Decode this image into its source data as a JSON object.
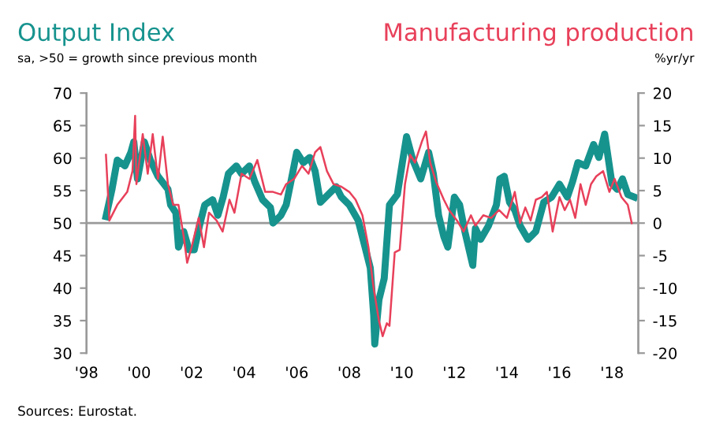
{
  "chart_data": {
    "type": "line",
    "ylabel": "Output Index",
    "y2label": "Manufacturing production",
    "subtitle": "sa, >50 = growth since previous month",
    "annotations": [
      "%yr/yr",
      "Sources: Eurostat."
    ],
    "xlim": [
      1998,
      2019
    ],
    "xticks": [
      {
        "value": 1998,
        "label": "'98"
      },
      {
        "value": 2000,
        "label": "'00"
      },
      {
        "value": 2002,
        "label": "'02"
      },
      {
        "value": 2004,
        "label": "'04"
      },
      {
        "value": 2006,
        "label": "'06"
      },
      {
        "value": 2008,
        "label": "'08"
      },
      {
        "value": 2010,
        "label": "'10"
      },
      {
        "value": 2012,
        "label": "'12"
      },
      {
        "value": 2014,
        "label": "'14"
      },
      {
        "value": 2016,
        "label": "'16"
      },
      {
        "value": 2018,
        "label": "'18"
      }
    ],
    "ylim": [
      30,
      70
    ],
    "yticks": [
      30,
      35,
      40,
      45,
      50,
      55,
      60,
      65,
      70
    ],
    "y2lim": [
      -20,
      20
    ],
    "y2ticks": [
      -20,
      -15,
      -10,
      -5,
      0,
      5,
      10,
      15,
      20
    ],
    "ref_lines": [
      {
        "axis": "y",
        "value": 50,
        "color": "#999999"
      }
    ],
    "grid": false,
    "legend": false,
    "series": [
      {
        "color": "#e8405a",
        "axis": "y2",
        "x": [
          1998.74,
          1998.87,
          1999.17,
          1999.55,
          1999.75,
          1999.85,
          1999.9,
          2000.14,
          2000.33,
          2000.52,
          2000.72,
          2000.9,
          2001.1,
          2001.3,
          2001.5,
          2001.7,
          2001.83,
          2002.0,
          2002.27,
          2002.47,
          2002.66,
          2002.95,
          2003.18,
          2003.44,
          2003.63,
          2003.9,
          2004.2,
          2004.5,
          2004.8,
          2005.1,
          2005.4,
          2005.6,
          2005.9,
          2006.2,
          2006.45,
          2006.7,
          2006.9,
          2007.15,
          2007.4,
          2007.7,
          2008.0,
          2008.24,
          2008.5,
          2008.73,
          2008.93,
          2009.13,
          2009.27,
          2009.43,
          2009.53,
          2009.73,
          2009.92,
          2010.12,
          2010.32,
          2010.5,
          2010.76,
          2010.92,
          2011.08,
          2011.3,
          2011.6,
          2011.8,
          2012.1,
          2012.35,
          2012.63,
          2012.8,
          2013.1,
          2013.4,
          2013.7,
          2014.0,
          2014.3,
          2014.5,
          2014.7,
          2014.9,
          2015.1,
          2015.33,
          2015.52,
          2015.74,
          2016.0,
          2016.2,
          2016.4,
          2016.6,
          2016.8,
          2017.0,
          2017.2,
          2017.4,
          2017.66,
          2017.9,
          2018.1,
          2018.36,
          2018.6,
          2018.75
        ],
        "values": [
          10.5,
          0.4,
          2.8,
          4.8,
          8.0,
          16.5,
          6.0,
          13.7,
          7.6,
          13.7,
          6.8,
          13.3,
          6.0,
          2.8,
          2.8,
          -2.1,
          -6.1,
          -3.7,
          0.8,
          -3.7,
          1.6,
          0.4,
          -1.3,
          3.6,
          1.6,
          7.6,
          6.8,
          9.7,
          4.8,
          4.8,
          4.4,
          6.0,
          6.8,
          8.8,
          7.6,
          10.9,
          11.7,
          8.0,
          6.0,
          5.6,
          4.8,
          3.6,
          1.2,
          -3.7,
          -10.1,
          -15.0,
          -17.4,
          -15.4,
          -15.8,
          -4.5,
          -4.1,
          6.0,
          10.5,
          9.3,
          12.5,
          14.1,
          9.3,
          6.4,
          3.6,
          2.0,
          0.4,
          -1.3,
          1.2,
          -0.4,
          1.2,
          0.8,
          2.0,
          0.8,
          4.8,
          0.0,
          2.4,
          0.4,
          3.6,
          4.0,
          4.8,
          -1.3,
          4.0,
          2.0,
          3.6,
          0.8,
          6.0,
          2.8,
          6.0,
          7.2,
          8.0,
          4.8,
          6.8,
          4.0,
          2.8,
          0.0
        ]
      },
      {
        "color": "#17938e",
        "axis": "y",
        "x": [
          1998.74,
          1998.97,
          1999.17,
          1999.46,
          1999.69,
          1999.8,
          1999.94,
          2000.2,
          2000.43,
          2000.72,
          2001.1,
          2001.2,
          2001.4,
          2001.5,
          2001.7,
          2001.9,
          2002.1,
          2002.3,
          2002.5,
          2002.8,
          2003.0,
          2003.2,
          2003.4,
          2003.7,
          2003.9,
          2004.2,
          2004.4,
          2004.7,
          2005.0,
          2005.1,
          2005.4,
          2005.6,
          2005.8,
          2006.0,
          2006.25,
          2006.5,
          2006.7,
          2006.9,
          2007.2,
          2007.5,
          2007.7,
          2008.0,
          2008.34,
          2008.6,
          2008.8,
          2008.93,
          2008.97,
          2009.13,
          2009.33,
          2009.53,
          2009.83,
          2010.02,
          2010.18,
          2010.42,
          2010.72,
          2011.02,
          2011.2,
          2011.4,
          2011.6,
          2011.75,
          2012.0,
          2012.2,
          2012.4,
          2012.7,
          2012.8,
          2013.0,
          2013.3,
          2013.6,
          2013.73,
          2013.9,
          2014.1,
          2014.3,
          2014.5,
          2014.8,
          2015.1,
          2015.4,
          2015.7,
          2016.0,
          2016.3,
          2016.5,
          2016.7,
          2017.0,
          2017.3,
          2017.5,
          2017.72,
          2018.0,
          2018.2,
          2018.4,
          2018.6,
          2018.85
        ],
        "values": [
          51.0,
          55.2,
          59.7,
          58.8,
          60.9,
          62.5,
          56.8,
          62.5,
          59.7,
          57.2,
          55.2,
          52.8,
          51.6,
          46.3,
          48.7,
          45.9,
          45.9,
          49.6,
          52.8,
          53.6,
          51.2,
          54.0,
          57.6,
          58.8,
          57.6,
          58.8,
          56.4,
          53.6,
          52.4,
          50.0,
          51.2,
          52.8,
          56.8,
          60.9,
          59.3,
          60.1,
          58.0,
          53.2,
          54.4,
          55.6,
          54.0,
          52.8,
          50.4,
          46.3,
          43.1,
          35.8,
          31.4,
          38.2,
          41.5,
          52.8,
          54.4,
          59.3,
          63.3,
          59.7,
          56.8,
          60.9,
          57.6,
          51.2,
          47.9,
          46.3,
          54.0,
          52.8,
          48.7,
          43.5,
          49.2,
          47.5,
          49.6,
          52.8,
          56.8,
          57.2,
          53.2,
          52.0,
          49.6,
          47.5,
          48.7,
          53.2,
          54.0,
          56.0,
          54.0,
          56.4,
          59.3,
          58.8,
          62.1,
          60.1,
          63.7,
          56.0,
          55.2,
          56.8,
          54.4,
          54.0
        ]
      }
    ]
  }
}
